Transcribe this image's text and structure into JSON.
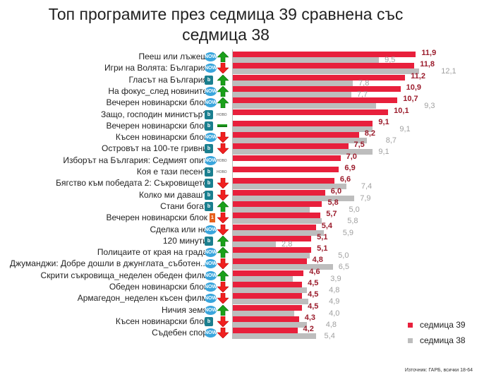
{
  "chart_data": {
    "type": "bar",
    "title": "Топ програмите през седмица 39 сравнена със седмица 38",
    "title_lines": [
      "Топ програмите през седмица 39 сравнена със",
      "седмица 38"
    ],
    "categories": [
      "Пееш или лъжеш",
      "Игри на Волята: България",
      "Гласът на България",
      "На фокус_след новините",
      "Вечерен новинарски блок",
      "Защо, господин министър?",
      "Вечерен новинарски блок",
      "Късен новинарски блок",
      "Островът на 100-те гривни",
      "Изборът на България: Седмият опит",
      "Коя е тази песен?",
      "Бягство към победата 2: Съкровището",
      "Колко ми даваш?",
      "Стани богат",
      "Вечерен новинарски блок",
      "Сделка или не",
      "120 минути",
      "Полицаите от края на града",
      "Джуманджи: Добре дошли в джунглата_съботен...",
      "Скрити съкровища_неделен обеден филм",
      "Обеден новинарски блок",
      "Армагедон_неделен късен филм",
      "Ничия земя",
      "Късен новинарски блок",
      "Съдебен спор"
    ],
    "channels": [
      "now",
      "now",
      "btv",
      "now",
      "now",
      "btv",
      "btv",
      "now",
      "btv",
      "now",
      "btv",
      "btv",
      "btv",
      "btv",
      "bnt1",
      "now",
      "btv",
      "now",
      "now",
      "now",
      "now",
      "now",
      "now",
      "btv",
      "now"
    ],
    "trend": [
      "up",
      "down",
      "up",
      "up",
      "up",
      "new",
      "same",
      "down",
      "down",
      "new",
      "new",
      "down",
      "down",
      "up",
      "down",
      "down",
      "up",
      "up",
      "down",
      "up",
      "down",
      "down",
      "up",
      "down",
      "down"
    ],
    "series": [
      {
        "name": "седмица 39",
        "color": "#e8203c",
        "values": [
          11.9,
          11.8,
          11.2,
          10.9,
          10.7,
          10.1,
          9.1,
          8.2,
          7.5,
          7.0,
          6.9,
          6.6,
          6.0,
          5.8,
          5.7,
          5.4,
          5.1,
          5.1,
          4.8,
          4.6,
          4.5,
          4.5,
          4.5,
          4.3,
          4.2
        ]
      },
      {
        "name": "седмица 38",
        "color": "#bdbdbd",
        "values": [
          9.5,
          12.1,
          7.8,
          7.7,
          9.3,
          null,
          9.1,
          8.7,
          9.1,
          null,
          null,
          7.4,
          7.9,
          5.0,
          5.8,
          5.9,
          2.8,
          5.0,
          6.5,
          3.9,
          4.8,
          4.9,
          4.0,
          4.8,
          5.4
        ]
      }
    ],
    "xlim": [
      0,
      13
    ],
    "legend": "bottom-right",
    "new_label": "НОВО",
    "source": "Източник: ГАРБ, всички 18-64"
  }
}
